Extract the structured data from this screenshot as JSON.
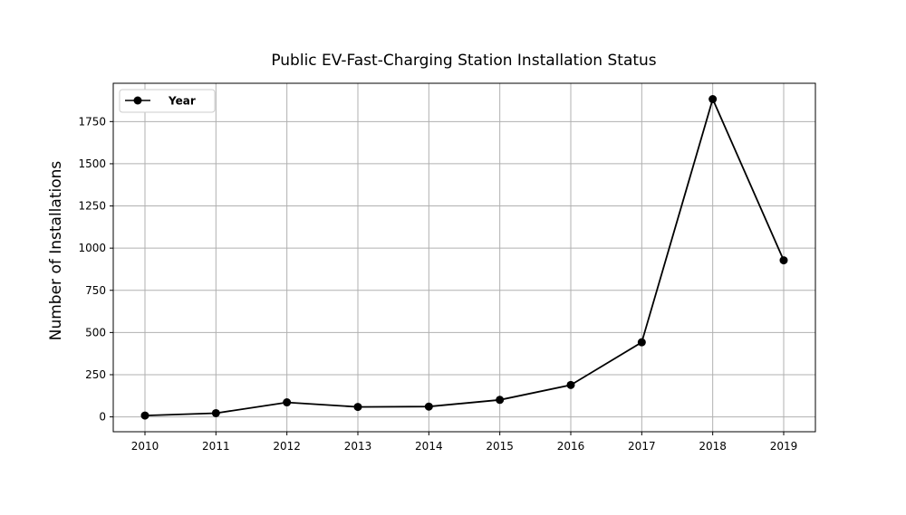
{
  "chart_data": {
    "type": "line",
    "title": "Public EV-Fast-Charging Station Installation Status",
    "xlabel": "",
    "ylabel": "Number of Installations",
    "x": [
      "2010",
      "2011",
      "2012",
      "2013",
      "2014",
      "2015",
      "2016",
      "2017",
      "2018",
      "2019"
    ],
    "series": [
      {
        "name": "Year",
        "color": "#000000",
        "marker": "circle",
        "values": [
          8,
          22,
          86,
          59,
          61,
          101,
          189,
          442,
          1883,
          928
        ]
      }
    ],
    "yticks": [
      0,
      250,
      500,
      750,
      1000,
      1250,
      1500,
      1750
    ],
    "ylim": [
      -88,
      1977
    ],
    "grid": true,
    "legend_position": "top-left"
  }
}
